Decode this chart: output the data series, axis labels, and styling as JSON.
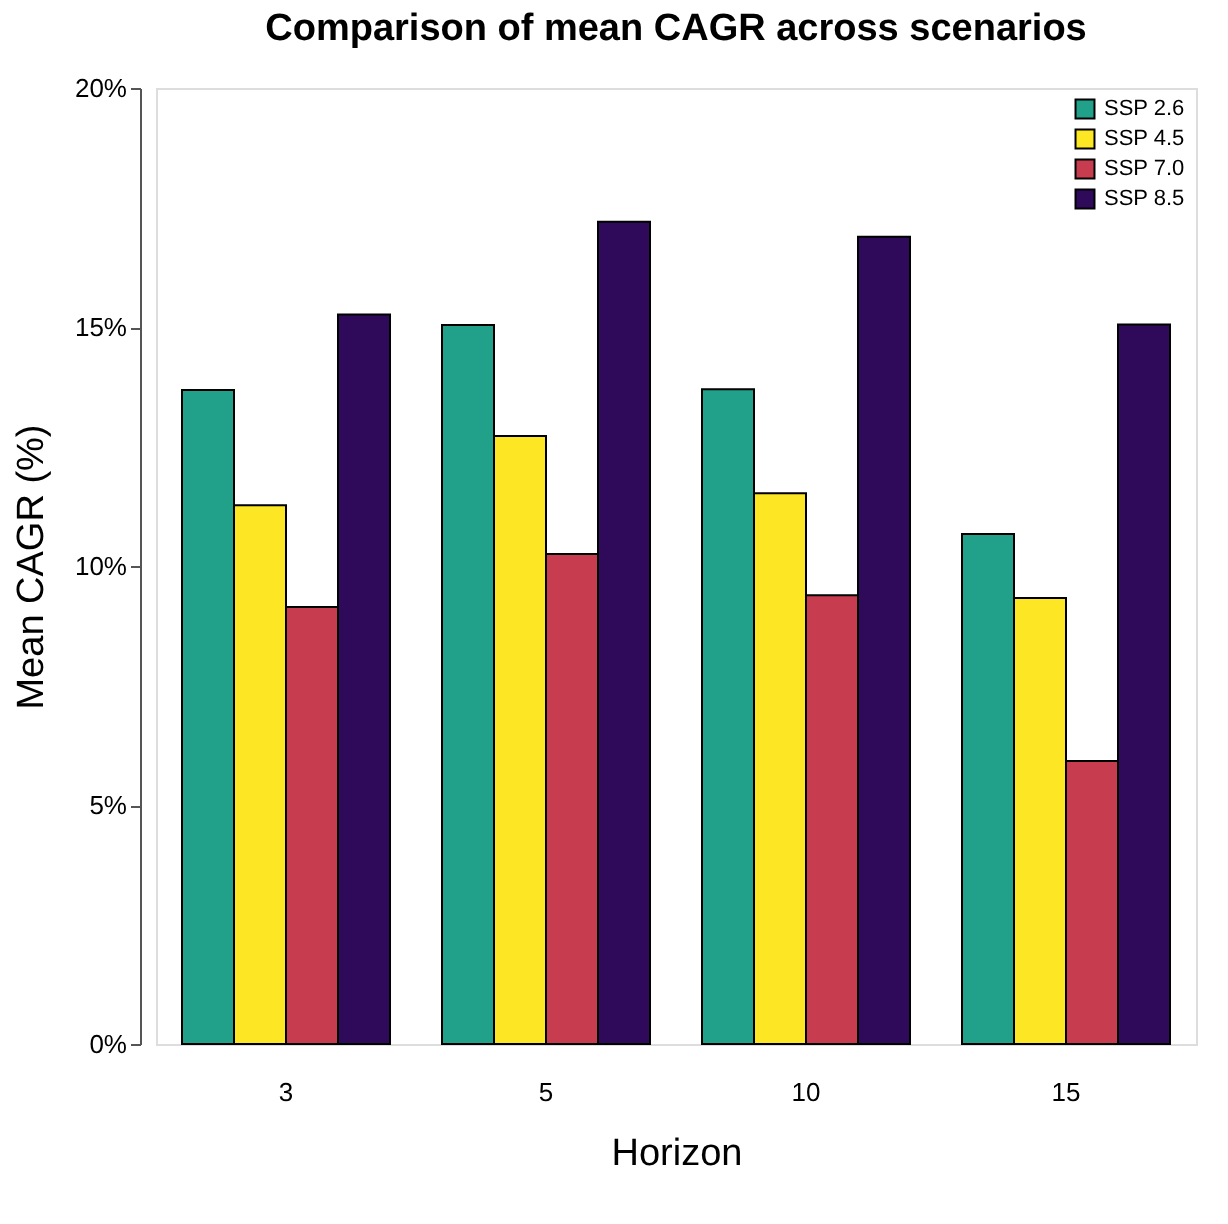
{
  "chart_data": {
    "type": "bar",
    "title": "Comparison of mean CAGR across scenarios",
    "xlabel": "Horizon",
    "ylabel": "Mean CAGR (%)",
    "categories": [
      "3",
      "5",
      "10",
      "15"
    ],
    "series": [
      {
        "name": "SSP 2.6",
        "color": "#21a08a",
        "values": [
          13.68,
          15.04,
          13.7,
          10.67
        ]
      },
      {
        "name": "SSP 4.5",
        "color": "#fde725",
        "values": [
          11.27,
          12.72,
          11.52,
          9.33
        ]
      },
      {
        "name": "SSP 7.0",
        "color": "#c83c50",
        "values": [
          9.14,
          10.25,
          9.39,
          5.92
        ]
      },
      {
        "name": "SSP 8.5",
        "color": "#300a5a",
        "values": [
          15.26,
          17.2,
          16.89,
          15.05
        ]
      }
    ],
    "ylim": [
      0,
      20
    ],
    "yticks": [
      {
        "value": 0,
        "label": "0%"
      },
      {
        "value": 5,
        "label": "5%"
      },
      {
        "value": 10,
        "label": "10%"
      },
      {
        "value": 15,
        "label": "15%"
      },
      {
        "value": 20,
        "label": "20%"
      }
    ],
    "grid": false,
    "legend": "top right"
  }
}
